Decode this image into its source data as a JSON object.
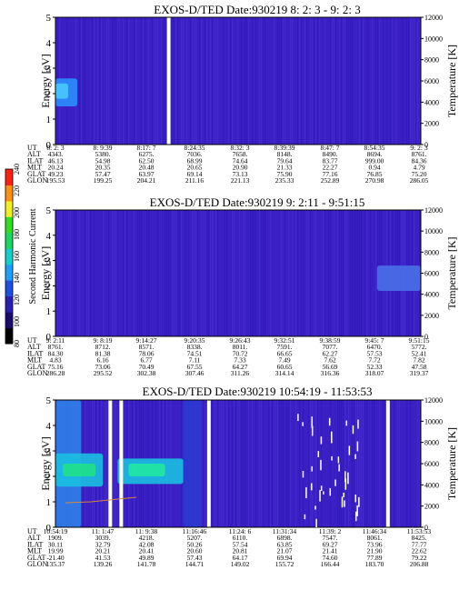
{
  "chart_data": [
    {
      "type": "heatmap",
      "title": "EXOS-D/TED   Date:930219   8: 2: 3 - 9: 2: 3",
      "ylabel": "Energy [eV]",
      "y2label": "Temperature [K]",
      "ylim": [
        0,
        5
      ],
      "yticks": [
        "0",
        "1",
        "2",
        "3",
        "4",
        "5"
      ],
      "y2lim": [
        0,
        12000
      ],
      "y2ticks": [
        "0",
        "2000",
        "4000",
        "6000",
        "8000",
        "10000",
        "12000"
      ],
      "background_color": "#3a20c4",
      "features": [
        {
          "x": [
            0.0,
            0.06
          ],
          "y": [
            1.5,
            2.6
          ],
          "color": "#2c8cff"
        },
        {
          "x": [
            0.0,
            0.035
          ],
          "y": [
            1.8,
            2.4
          ],
          "color": "#49c8ff"
        }
      ],
      "data_gaps": [
        0.31
      ],
      "ephemeris": {
        "rows": [
          "UT",
          "ALT",
          "ILAT",
          "MLT",
          "GLAT",
          "GLON"
        ],
        "columns": [
          [
            "8: 2: 3",
            "4343.",
            "46.13",
            "20.24",
            "49.23",
            "195.53"
          ],
          [
            "8: 9:39",
            "5380.",
            "54.98",
            "20.35",
            "57.47",
            "199.25"
          ],
          [
            "8:17: 7",
            "6275.",
            "62.50",
            "20.48",
            "63.97",
            "204.21"
          ],
          [
            "8:24:35",
            "7036.",
            "68.99",
            "20.65",
            "69.14",
            "211.16"
          ],
          [
            "8:32: 3",
            "7658.",
            "74.64",
            "20.90",
            "73.13",
            "221.13"
          ],
          [
            "8:39:39",
            "8148.",
            "79.64",
            "21.33",
            "75.90",
            "235.33"
          ],
          [
            "8:47: 7",
            "8490.",
            "83.77",
            "22.27",
            "77.16",
            "252.89"
          ],
          [
            "8:54:35",
            "8694.",
            "999.00",
            "0.94",
            "76.85",
            "270.98"
          ],
          [
            "9: 2: 3",
            "8761.",
            "84.36",
            "4.79",
            "75.20",
            "286.05"
          ]
        ]
      }
    },
    {
      "type": "heatmap",
      "title": "EXOS-D/TED   Date:930219   9: 2:11 - 9:51:15",
      "ylabel": "Energy [eV]",
      "y2label": "Temperature [K]",
      "ylim": [
        0,
        5
      ],
      "yticks": [
        "0",
        "1",
        "2",
        "3",
        "4",
        "5"
      ],
      "y2lim": [
        0,
        12000
      ],
      "y2ticks": [
        "0",
        "2000",
        "4000",
        "6000",
        "8000",
        "10000",
        "12000"
      ],
      "background_color": "#3a20c4",
      "features": [
        {
          "x": [
            0.88,
            1.0
          ],
          "y": [
            1.8,
            2.8
          ],
          "color": "#4a6fe8"
        }
      ],
      "colorbar": {
        "label": "Second Harmonic Current",
        "ticks": [
          "80",
          "100",
          "120",
          "140",
          "160",
          "180",
          "200",
          "220",
          "240"
        ],
        "colors": [
          "#000000",
          "#1c0a6e",
          "#2a1fb0",
          "#1d4fe0",
          "#1aa0ff",
          "#10d0d0",
          "#18d860",
          "#30e020",
          "#f0f020",
          "#ff9010",
          "#ff2010"
        ]
      },
      "ephemeris": {
        "rows": [
          "UT",
          "ALT",
          "ILAT",
          "MLT",
          "GLAT",
          "GLON"
        ],
        "columns": [
          [
            "9: 2:11",
            "8761.",
            "84.30",
            "4.83",
            "75.16",
            "286.28"
          ],
          [
            "9: 8:19",
            "8712.",
            "81.38",
            "6.16",
            "73.06",
            "295.52"
          ],
          [
            "9:14:27",
            "8571.",
            "78.06",
            "6.77",
            "70.49",
            "302.38"
          ],
          [
            "9:20:35",
            "8338.",
            "74.51",
            "7.11",
            "67.55",
            "307.46"
          ],
          [
            "9:26:43",
            "8011.",
            "70.72",
            "7.33",
            "64.27",
            "311.26"
          ],
          [
            "9:32:51",
            "7591.",
            "66.65",
            "7.49",
            "60.65",
            "314.14"
          ],
          [
            "9:38:59",
            "7077.",
            "62.27",
            "7.62",
            "56.69",
            "316.36"
          ],
          [
            "9:45: 7",
            "6470.",
            "57.53",
            "7.72",
            "52.33",
            "318.07"
          ],
          [
            "9:51:15",
            "5772.",
            "52.41",
            "7.82",
            "47.58",
            "319.37"
          ]
        ]
      }
    },
    {
      "type": "heatmap",
      "title": "EXOS-D/TED   Date:930219   10:54:19 - 11:53:53",
      "ylabel": "Energy [eV]",
      "y2label": "Temperature [K]",
      "ylim": [
        0,
        5
      ],
      "yticks": [
        "0",
        "1",
        "2",
        "3",
        "4",
        "5"
      ],
      "y2lim": [
        0,
        12000
      ],
      "y2ticks": [
        "0",
        "2000",
        "4000",
        "6000",
        "8000",
        "10000",
        "12000"
      ],
      "background_color": "#3a20c4",
      "features": [
        {
          "x": [
            0.0,
            0.07
          ],
          "y": [
            0.0,
            5.0
          ],
          "color": "#2f7fe8"
        },
        {
          "x": [
            0.0,
            0.13
          ],
          "y": [
            1.6,
            2.9
          ],
          "color": "#1bbfe0"
        },
        {
          "x": [
            0.02,
            0.11
          ],
          "y": [
            2.0,
            2.5
          ],
          "color": "#20e08a"
        },
        {
          "x": [
            0.17,
            0.35
          ],
          "y": [
            1.7,
            2.7
          ],
          "color": "#1bbfe0"
        },
        {
          "x": [
            0.2,
            0.3
          ],
          "y": [
            2.0,
            2.5
          ],
          "color": "#22e8a0"
        },
        {
          "x": [
            0.35,
            0.4
          ],
          "y": [
            0.0,
            5.0
          ],
          "color": "#2a3ad0"
        }
      ],
      "data_gaps": [
        0.15,
        0.18,
        0.42,
        0.91
      ],
      "ephemeris": {
        "rows": [
          "UT",
          "ALT",
          "ILAT",
          "MLT",
          "GLAT",
          "GLON"
        ],
        "columns": [
          [
            "10:54:19",
            "1909.",
            "30.11",
            "19.99",
            "-21.40",
            "135.37"
          ],
          [
            "11: 1:47",
            "3039.",
            "32.79",
            "20.21",
            "41.53",
            "139.26"
          ],
          [
            "11: 9:38",
            "4218.",
            "42.08",
            "20.41",
            "49.89",
            "141.78"
          ],
          [
            "11:16:46",
            "5207.",
            "50.26",
            "20.60",
            "57.43",
            "144.71"
          ],
          [
            "11:24: 6",
            "6110.",
            "57.54",
            "20.81",
            "64.17",
            "149.02"
          ],
          [
            "11:31:34",
            "6898.",
            "63.85",
            "21.07",
            "69.94",
            "155.72"
          ],
          [
            "11:39: 2",
            "7547.",
            "69.27",
            "21.41",
            "74.60",
            "166.44"
          ],
          [
            "11:46:34",
            "8061.",
            "73.96",
            "21.90",
            "77.89",
            "183.70"
          ],
          [
            "11:53:53",
            "8425.",
            "77.77",
            "22.62",
            "79.22",
            "206.88"
          ]
        ]
      }
    }
  ]
}
